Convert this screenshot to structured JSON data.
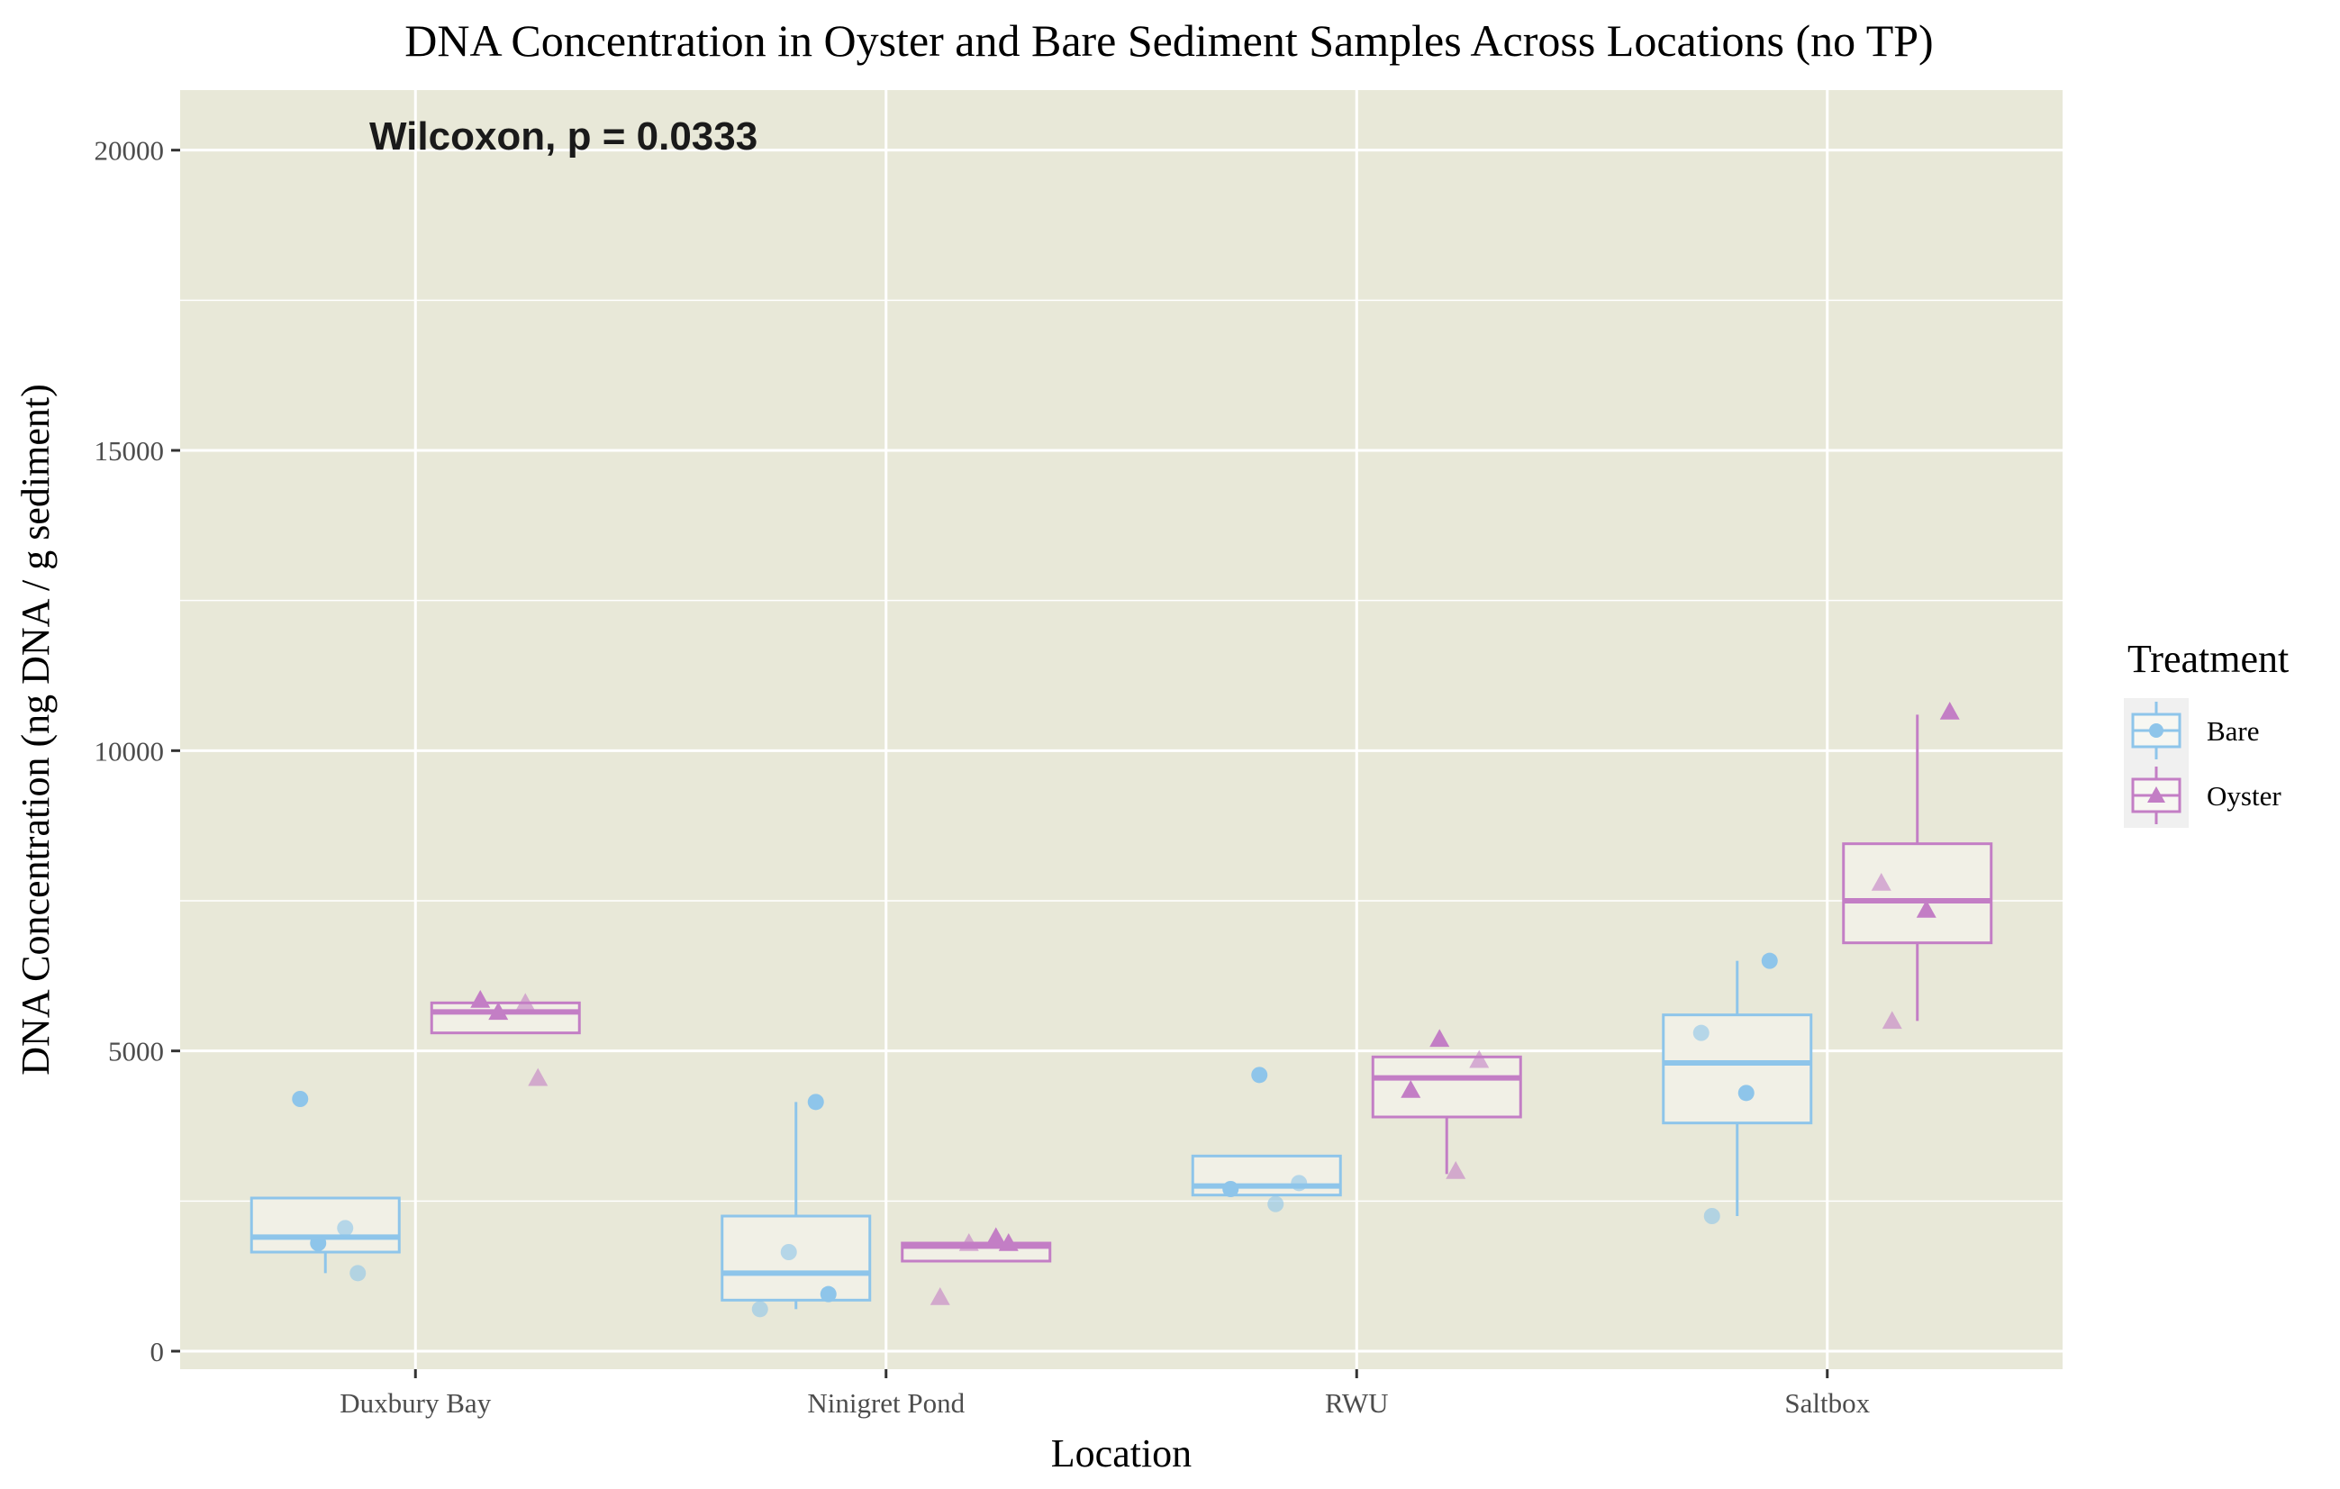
{
  "chart_data": {
    "type": "box",
    "title": "DNA Concentration in Oyster and Bare Sediment Samples Across Locations (no TP)",
    "xlabel": "Location",
    "ylabel": "DNA Concentration (ng DNA / g sediment)",
    "categories": [
      "Duxbury Bay",
      "Ninigret Pond",
      "RWU",
      "Saltbox"
    ],
    "ylim": [
      -300,
      21000
    ],
    "yticks": [
      0,
      5000,
      10000,
      15000,
      20000
    ],
    "grid": true,
    "legend": {
      "title": "Treatment",
      "placement": "right"
    },
    "annotation": {
      "text": "Wilcoxon, p = 0.0333",
      "y": 20000
    },
    "series": [
      {
        "name": "Bare",
        "color": "#8ec5ea",
        "marker": "circle",
        "boxes": [
          {
            "q1": 1650,
            "median": 1900,
            "q3": 2550,
            "whisker_low": 1300,
            "whisker_high": 2550
          },
          {
            "q1": 850,
            "median": 1300,
            "q3": 2250,
            "whisker_low": 700,
            "whisker_high": 4150
          },
          {
            "q1": 2600,
            "median": 2750,
            "q3": 3250,
            "whisker_low": 2600,
            "whisker_high": 3250
          },
          {
            "q1": 3800,
            "median": 4800,
            "q3": 5600,
            "whisker_low": 2250,
            "whisker_high": 6500
          }
        ],
        "points": [
          [
            4200,
            2050,
            1800,
            1300
          ],
          [
            4150,
            1650,
            950,
            700
          ],
          [
            4600,
            2800,
            2700,
            2450
          ],
          [
            6500,
            5300,
            4300,
            2250
          ]
        ]
      },
      {
        "name": "Oyster",
        "color": "#c37ec5",
        "marker": "triangle",
        "boxes": [
          {
            "q1": 5300,
            "median": 5650,
            "q3": 5800,
            "whisker_low": 5300,
            "whisker_high": 5800
          },
          {
            "q1": 1500,
            "median": 1750,
            "q3": 1800,
            "whisker_low": 1500,
            "whisker_high": 1800
          },
          {
            "q1": 3900,
            "median": 4550,
            "q3": 4900,
            "whisker_low": 2950,
            "whisker_high": 4900
          },
          {
            "q1": 6800,
            "median": 7500,
            "q3": 8450,
            "whisker_low": 5500,
            "whisker_high": 10600
          }
        ],
        "points": [
          [
            5850,
            5800,
            5650,
            4550
          ],
          [
            1900,
            1800,
            1800,
            900
          ],
          [
            5200,
            4850,
            4350,
            3000
          ],
          [
            10650,
            7800,
            7350,
            5500
          ]
        ]
      }
    ]
  }
}
